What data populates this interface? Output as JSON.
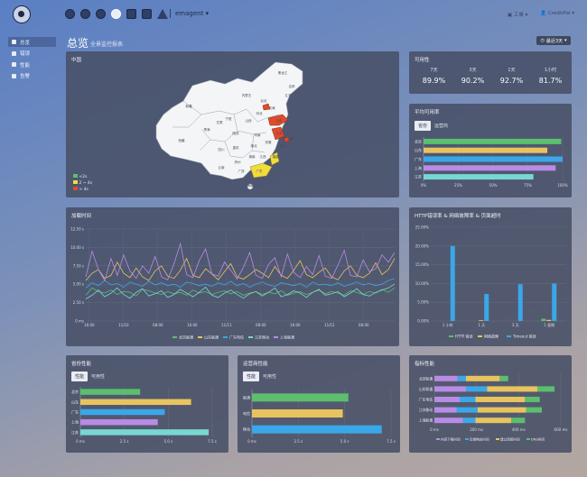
{
  "topbar": {
    "env": "emagent",
    "right_items": [
      "工单",
      "CreditPal"
    ]
  },
  "sidebar": {
    "items": [
      {
        "label": "总览",
        "active": true
      },
      {
        "label": "错误",
        "active": false
      },
      {
        "label": "性能",
        "active": false
      },
      {
        "label": "告警",
        "active": false
      }
    ]
  },
  "header": {
    "title": "总览",
    "subtitle": "全景监控报表",
    "time_range": "最近3天"
  },
  "colors": {
    "green": "#5bbf6e",
    "yellow": "#e8c45f",
    "blue": "#3aa7e8",
    "teal": "#78d7d3",
    "purple": "#b98be6",
    "red": "#e04b2b"
  },
  "map_panel": {
    "title": "中国",
    "legend": [
      "<2s",
      "2 ~ 4s",
      "> 4s"
    ],
    "provinces": [
      "新疆",
      "西藏",
      "青海",
      "甘肃",
      "内蒙古",
      "黑龙江",
      "吉林",
      "辽宁",
      "北京",
      "天津",
      "河北",
      "山西",
      "陕西",
      "宁夏",
      "山东",
      "河南",
      "江苏",
      "安徽",
      "湖北",
      "四川",
      "重庆",
      "湖南",
      "江西",
      "浙江",
      "福建",
      "贵州",
      "云南",
      "广西",
      "广东",
      "海南",
      "上海"
    ]
  },
  "availability": {
    "title": "可用性",
    "items": [
      {
        "label": "7天",
        "value": "89.9%"
      },
      {
        "label": "3天",
        "value": "90.2%"
      },
      {
        "label": "1天",
        "value": "92.7%"
      },
      {
        "label": "1小时",
        "value": "81.7%"
      }
    ]
  },
  "avg_availability": {
    "title": "平均可用率",
    "tabs": [
      "省份",
      "运营商"
    ],
    "chart_data": {
      "type": "bar",
      "orientation": "horizontal",
      "categories": [
        "北京",
        "山东",
        "广东",
        "上海",
        "江苏"
      ],
      "values": [
        99,
        89,
        100,
        95,
        79
      ],
      "xlim": [
        0,
        100
      ],
      "xticks": [
        "0%",
        "25%",
        "50%",
        "75%",
        "100%"
      ],
      "bar_colors": [
        "#5bbf6e",
        "#e8c45f",
        "#3aa7e8",
        "#b98be6",
        "#78d7d3"
      ]
    }
  },
  "load_time": {
    "title": "加载时间",
    "chart_data": {
      "type": "line",
      "ylim": [
        0,
        12.5
      ],
      "yticks": [
        "0 ms",
        "2.50 s",
        "5.00 s",
        "7.50 s",
        "10.00 s",
        "12.50 s"
      ],
      "xticks": [
        "16:00",
        "11/10",
        "08:00",
        "16:00",
        "11/11",
        "08:00",
        "16:00",
        "11/12",
        "08:00"
      ],
      "series": [
        {
          "name": "北京联通",
          "color": "#5bbf6e",
          "values": [
            3.5,
            4.5,
            4.0,
            3.8,
            4.2,
            3.6,
            4.0,
            3.9,
            3.4,
            4.3,
            4.1,
            3.8,
            3.6,
            4.0,
            3.7,
            3.9,
            3.5,
            4.2,
            3.8,
            4.0,
            3.6,
            3.9,
            4.1,
            3.7,
            4.0,
            3.5,
            3.8,
            4.0,
            3.6,
            3.9,
            3.7,
            4.1,
            3.5,
            3.8,
            4.0,
            3.6,
            3.9,
            4.2,
            3.7,
            4.0,
            3.8,
            3.5,
            4.1,
            3.9,
            3.6,
            4.0,
            3.8,
            4.3,
            3.9,
            4.5
          ]
        },
        {
          "name": "山东联通",
          "color": "#e8c45f",
          "values": [
            5.5,
            6.5,
            7.0,
            5.8,
            6.2,
            8.0,
            6.5,
            5.9,
            7.2,
            6.0,
            5.5,
            6.8,
            7.5,
            6.1,
            5.8,
            6.9,
            8.5,
            6.2,
            5.9,
            7.1,
            6.4,
            5.6,
            6.7,
            7.8,
            6.0,
            5.7,
            6.3,
            7.0,
            6.5,
            5.9,
            7.4,
            6.2,
            5.8,
            6.9,
            8.2,
            6.3,
            5.9,
            6.6,
            7.2,
            6.0,
            5.6,
            6.8,
            7.5,
            6.2,
            5.9,
            6.5,
            7.9,
            6.3,
            7.0,
            8.5
          ]
        },
        {
          "name": "广东电信",
          "color": "#3aa7e8",
          "values": [
            4.5,
            5.2,
            4.8,
            5.5,
            4.9,
            5.1,
            4.6,
            5.3,
            5.0,
            4.7,
            5.4,
            4.9,
            5.2,
            4.8,
            5.0,
            4.6,
            5.3,
            5.1,
            4.8,
            5.0,
            4.7,
            5.2,
            4.9,
            5.4,
            4.8,
            5.1,
            4.6,
            5.0,
            5.3,
            4.9,
            4.7,
            5.2,
            5.0,
            4.8,
            5.1,
            4.6,
            5.3,
            4.9,
            5.0,
            4.8,
            5.2,
            4.7,
            5.0,
            5.3,
            4.9,
            5.1,
            4.8,
            5.0,
            5.5,
            5.8
          ]
        },
        {
          "name": "江苏移动",
          "color": "#78d7d3",
          "values": [
            3.0,
            3.5,
            4.2,
            3.3,
            3.8,
            4.5,
            3.6,
            3.1,
            3.9,
            4.4,
            3.4,
            3.7,
            4.1,
            3.2,
            3.6,
            4.3,
            3.8,
            3.3,
            3.9,
            4.6,
            3.5,
            3.2,
            3.8,
            4.2,
            3.6,
            3.1,
            3.7,
            4.0,
            3.4,
            3.9,
            4.5,
            3.3,
            3.6,
            4.1,
            3.8,
            3.2,
            3.9,
            4.3,
            3.5,
            3.7,
            4.0,
            3.3,
            3.8,
            4.4,
            3.6,
            3.4,
            3.9,
            4.2,
            4.5,
            5.0
          ]
        },
        {
          "name": "上海联通",
          "color": "#b98be6",
          "values": [
            6.0,
            9.5,
            7.0,
            5.5,
            8.5,
            6.2,
            9.0,
            6.8,
            5.8,
            7.5,
            6.5,
            8.8,
            6.0,
            5.6,
            7.8,
            10.5,
            6.3,
            5.9,
            8.2,
            9.8,
            6.4,
            6.1,
            8.0,
            6.9,
            5.7,
            7.3,
            9.3,
            6.2,
            5.8,
            7.7,
            8.6,
            6.0,
            9.1,
            6.6,
            5.9,
            7.4,
            6.3,
            8.9,
            6.1,
            5.8,
            7.6,
            9.6,
            6.2,
            6.0,
            8.3,
            6.7,
            7.1,
            9.0,
            8.0,
            9.3
          ]
        }
      ]
    }
  },
  "http_error": {
    "title": "HTTP错误率 & 网络故障率 & 页面超时",
    "chart_data": {
      "type": "bar",
      "categories": [
        "1 小时",
        "1 天",
        "3 天",
        "1 星期"
      ],
      "yticks": [
        "0.00%",
        "5.00%",
        "10.00%",
        "15.00%",
        "20.00%",
        "25.00%"
      ],
      "ylim": [
        0,
        25
      ],
      "series": [
        {
          "name": "HTTP 错误",
          "color": "#5bbf6e",
          "values": [
            0,
            0,
            0,
            0.6
          ]
        },
        {
          "name": "网络故障",
          "color": "#e8c45f",
          "values": [
            0,
            0.2,
            0,
            0.3
          ]
        },
        {
          "name": "Timeout 错误",
          "color": "#3aa7e8",
          "values": [
            20,
            7.2,
            9.8,
            10
          ]
        }
      ]
    }
  },
  "province_perf": {
    "title": "省份性能",
    "tabs": [
      "性能",
      "可用性"
    ],
    "chart_data": {
      "type": "bar",
      "orientation": "horizontal",
      "categories": [
        "北京",
        "山东",
        "广东",
        "上海",
        "江苏"
      ],
      "values": [
        3.4,
        6.3,
        4.8,
        4.4,
        7.3
      ],
      "xlim": [
        0,
        7.5
      ],
      "xticks": [
        "0 ms",
        "2.5 s",
        "5.0 s",
        "7.5 s"
      ],
      "bar_colors": [
        "#5bbf6e",
        "#e8c45f",
        "#3aa7e8",
        "#b98be6",
        "#78d7d3"
      ]
    }
  },
  "isp_perf": {
    "title": "运营商性能",
    "tabs": [
      "性能",
      "可用性"
    ],
    "chart_data": {
      "type": "bar",
      "orientation": "horizontal",
      "categories": [
        "联通",
        "电信",
        "移动"
      ],
      "values": [
        5.2,
        4.9,
        7.0
      ],
      "xlim": [
        0,
        7.5
      ],
      "xticks": [
        "0 ms",
        "2.5 s",
        "5.0 s",
        "7.5 s"
      ],
      "bar_colors": [
        "#5bbf6e",
        "#e8c45f",
        "#3aa7e8"
      ]
    }
  },
  "metric_perf": {
    "title": "指标性能",
    "chart_data": {
      "type": "bar",
      "orientation": "horizontal",
      "stacked": true,
      "categories": [
        "北京联通",
        "山东联通",
        "广东电信",
        "江苏移动",
        "上海联通"
      ],
      "xlim": [
        0,
        600
      ],
      "xticks": [
        "0 ms",
        "200 ms",
        "400 ms",
        "600 ms"
      ],
      "series": [
        {
          "name": "内容下载时间",
          "color": "#b98be6",
          "values": [
            110,
            150,
            120,
            105,
            135
          ]
        },
        {
          "name": "后端响应时间",
          "color": "#3aa7e8",
          "values": [
            40,
            100,
            75,
            100,
            60
          ]
        },
        {
          "name": "建立连接时间",
          "color": "#e8c45f",
          "values": [
            160,
            240,
            235,
            230,
            170
          ]
        },
        {
          "name": "DNS时间",
          "color": "#5bbf6e",
          "values": [
            40,
            80,
            70,
            75,
            65
          ]
        }
      ]
    }
  }
}
